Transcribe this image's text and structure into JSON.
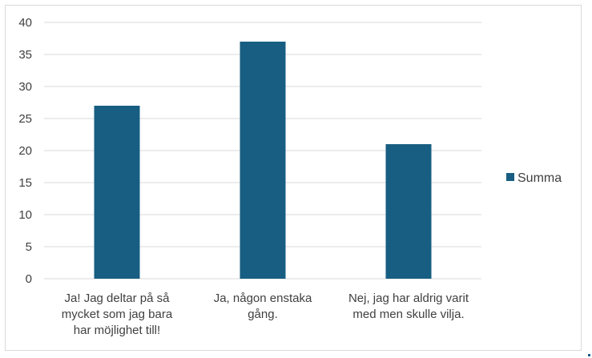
{
  "chart_data": {
    "type": "bar",
    "categories": [
      [
        "Ja! Jag deltar på så",
        "mycket som jag bara",
        "har möjlighet till!"
      ],
      [
        "Ja, någon enstaka",
        "gång."
      ],
      [
        "Nej, jag har aldrig varit",
        "med men skulle vilja."
      ]
    ],
    "series": [
      {
        "name": "Summa",
        "values": [
          27,
          37,
          21
        ],
        "color": "#175E82"
      }
    ],
    "ylim": [
      0,
      40
    ],
    "yticks": [
      0,
      5,
      10,
      15,
      20,
      25,
      30,
      35,
      40
    ],
    "grid": true,
    "legend": "right",
    "title": "",
    "xlabel": "",
    "ylabel": ""
  },
  "colors": {
    "bar": "#175E82",
    "grid": "#d9d9d9",
    "text": "#404040"
  }
}
